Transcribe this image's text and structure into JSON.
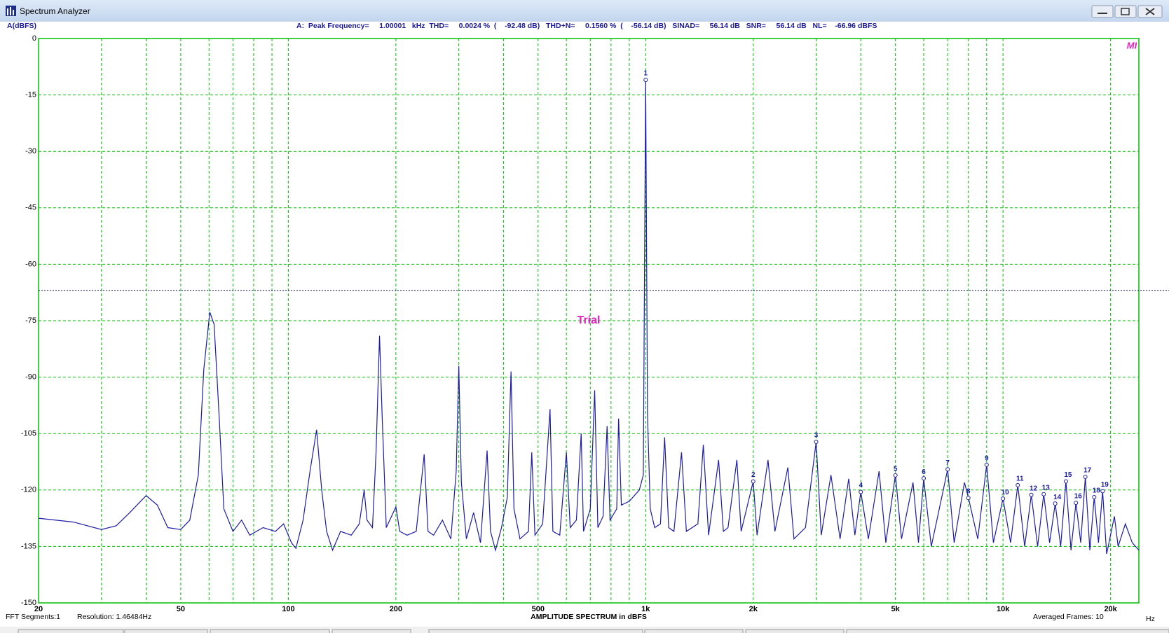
{
  "window": {
    "title": "Spectrum Analyzer"
  },
  "chart_data": {
    "type": "line",
    "y_label": "A(dBFS)",
    "x_label": "AMPLITUDE SPECTRUM in dBFS",
    "x_unit": "Hz",
    "measurements": "A:  Peak Frequency=     1.00001   kHz  THD=     0.0024 %  (    -92.48 dB)   THD+N=     0.1560 %  (    -56.14 dB)   SINAD=     56.14 dB   SNR=     56.14 dB   NL=    -66.96 dBFS",
    "x": [
      20,
      25,
      30,
      33,
      36,
      40,
      43,
      46,
      50,
      53,
      56,
      58,
      60.3,
      62,
      64,
      66,
      70,
      74,
      78,
      85,
      92,
      97,
      102,
      105,
      110,
      115,
      120,
      124,
      128,
      133,
      140,
      150,
      158,
      163,
      166,
      172,
      176,
      180,
      183,
      188,
      200,
      205,
      215,
      228,
      240,
      246,
      255,
      270,
      285,
      295,
      300,
      305,
      315,
      330,
      345,
      360,
      368,
      380,
      395,
      410,
      420,
      428,
      445,
      470,
      480,
      490,
      515,
      540,
      550,
      575,
      600,
      615,
      640,
      660,
      670,
      700,
      720,
      735,
      760,
      780,
      795,
      830,
      840,
      855,
      900,
      960,
      985,
      1000,
      1012,
      1030,
      1060,
      1100,
      1130,
      1160,
      1200,
      1260,
      1300,
      1400,
      1450,
      1500,
      1600,
      1650,
      1700,
      1800,
      1850,
      2000,
      2050,
      2200,
      2300,
      2500,
      2600,
      2800,
      3000,
      3100,
      3300,
      3500,
      3700,
      3850,
      4000,
      4200,
      4500,
      4700,
      5000,
      5200,
      5600,
      5800,
      6000,
      6300,
      7000,
      7300,
      7800,
      8000,
      8500,
      9000,
      9400,
      10000,
      10500,
      11000,
      11500,
      12000,
      12500,
      13000,
      13500,
      14000,
      14500,
      15000,
      15500,
      16000,
      16500,
      17000,
      17500,
      18000,
      18500,
      19000,
      19500,
      20500,
      21000,
      22000,
      23000,
      24000
    ],
    "values": [
      -127.5,
      -128.5,
      -130.5,
      -129.5,
      -126,
      -121.5,
      -124,
      -130,
      -130.5,
      -128,
      -116,
      -88,
      -72.7,
      -76,
      -100,
      -125,
      -131,
      -128,
      -132,
      -130,
      -131,
      -129,
      -134,
      -135.5,
      -128,
      -115,
      -104,
      -120,
      -131,
      -136,
      -131,
      -132,
      -129,
      -120,
      -128,
      -130,
      -110,
      -79,
      -100,
      -130,
      -124.5,
      -131,
      -132,
      -131,
      -110.5,
      -131,
      -132,
      -128,
      -133,
      -115,
      -87,
      -118,
      -133,
      -126,
      -134,
      -109.5,
      -131,
      -136,
      -130,
      -122,
      -88.5,
      -125,
      -133,
      -131,
      -110,
      -132,
      -129,
      -98.5,
      -131,
      -132,
      -110,
      -130,
      -128,
      -105,
      -131,
      -125,
      -93.5,
      -130,
      -127,
      -103,
      -128,
      -125,
      -101,
      -124,
      -123,
      -120,
      -116,
      -11,
      -100,
      -125,
      -130,
      -129,
      -106,
      -130,
      -131,
      -110,
      -131,
      -129,
      -108,
      -132,
      -112,
      -131,
      -130,
      -112,
      -131,
      -117.7,
      -132,
      -112,
      -131,
      -114,
      -133,
      -130,
      -107.2,
      -132,
      -116,
      -133,
      -117,
      -132,
      -120.5,
      -133,
      -115,
      -134,
      -116,
      -133,
      -118,
      -134,
      -117,
      -135,
      -114.5,
      -134,
      -118,
      -122,
      -133,
      -113.3,
      -134,
      -122.3,
      -134,
      -118.7,
      -135,
      -121.3,
      -135,
      -121.1,
      -134,
      -123.6,
      -135,
      -117.7,
      -136,
      -123.4,
      -134,
      -116.5,
      -136,
      -121.9,
      -134,
      -120.3,
      -137,
      -127,
      -135,
      -129,
      -134,
      -136
    ],
    "color": "#1c1ca8",
    "xscale": "log",
    "xlim": [
      20,
      24000
    ],
    "ylim": [
      -150,
      0
    ],
    "yticks": [
      0,
      -15,
      -30,
      -45,
      -60,
      -75,
      -90,
      -105,
      -120,
      -135,
      -150
    ],
    "xticks": [
      20,
      50,
      100,
      200,
      500,
      {
        "value": 1000,
        "label": "1k"
      },
      {
        "value": 2000,
        "label": "2k"
      },
      {
        "value": 5000,
        "label": "5k"
      },
      {
        "value": 10000,
        "label": "10k"
      },
      {
        "value": 20000,
        "label": "20k"
      }
    ],
    "xgrid": [
      20,
      30,
      40,
      50,
      60,
      70,
      80,
      90,
      100,
      200,
      300,
      400,
      500,
      600,
      700,
      800,
      900,
      1000,
      2000,
      3000,
      4000,
      5000,
      6000,
      7000,
      8000,
      9000,
      10000,
      20000
    ],
    "grid": true,
    "noise_level": -66.96,
    "harmonics": {
      "labels": [
        1,
        2,
        3,
        4,
        5,
        6,
        7,
        8,
        9,
        10,
        11,
        12,
        13,
        14,
        15,
        16,
        17,
        18,
        19
      ],
      "x": [
        1000,
        2000,
        3000,
        4000,
        5000,
        6000,
        7000,
        8000,
        9000,
        10000,
        11000,
        12000,
        13000,
        14000,
        15000,
        16000,
        17000,
        18000,
        19000
      ],
      "values": [
        -11,
        -117.7,
        -107.2,
        -120.5,
        -116.1,
        -116.9,
        -114.5,
        -122.1,
        -113.3,
        -122.3,
        -118.7,
        -121.3,
        -121.1,
        -123.6,
        -117.7,
        -123.4,
        -116.5,
        -121.9,
        -120.3
      ]
    },
    "watermark": "Trial",
    "logo": "MI"
  },
  "status": {
    "fft_segments": "FFT Segments:1",
    "resolution": "Resolution: 1.46484Hz",
    "averaged_frames": "Averaged Frames: 10"
  }
}
